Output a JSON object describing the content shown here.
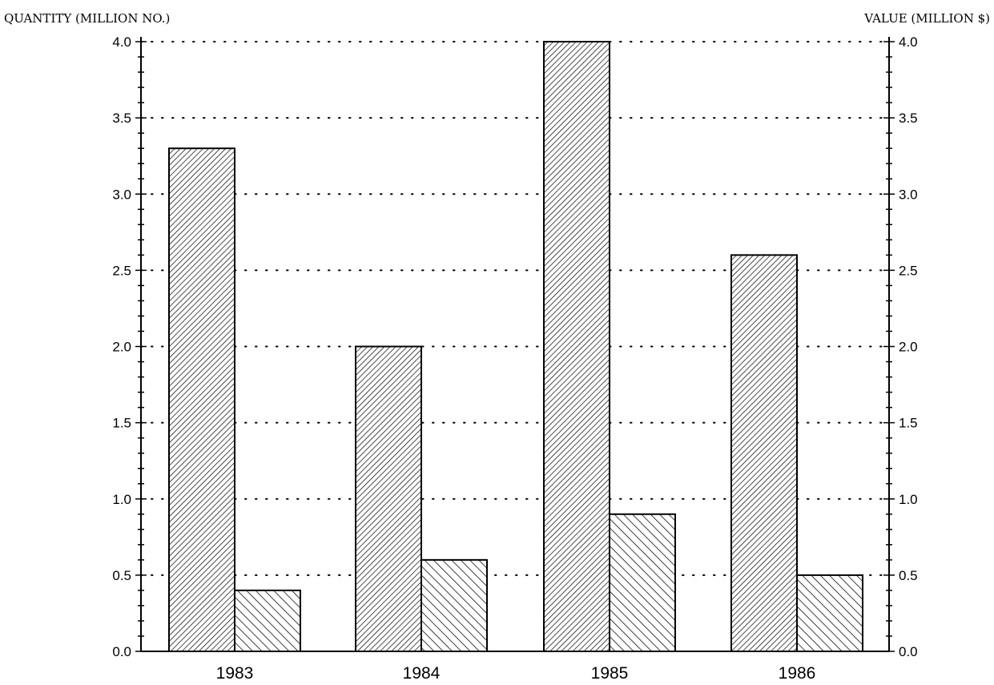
{
  "chart_data": {
    "type": "bar",
    "categories": [
      "1983",
      "1984",
      "1985",
      "1986"
    ],
    "series": [
      {
        "values": [
          3.3,
          2.0,
          4.0,
          2.6
        ],
        "axis": "left",
        "pattern": "dense-forward-hatch"
      },
      {
        "values": [
          0.4,
          0.6,
          0.9,
          0.5
        ],
        "axis": "right",
        "pattern": "backward-hatch"
      }
    ],
    "y_left": {
      "label": "QUANTITY (MILLION NO.)",
      "ylim": [
        0,
        4.0
      ],
      "ticks": [
        "0.0",
        "0.5",
        "1.0",
        "1.5",
        "2.0",
        "2.5",
        "3.0",
        "3.5",
        "4.0"
      ]
    },
    "y_right": {
      "label": "VALUE (MILLION $)",
      "ylim": [
        0,
        4.0
      ],
      "ticks": [
        "0.0",
        "0.5",
        "1.0",
        "1.5",
        "2.0",
        "2.5",
        "3.0",
        "3.5",
        "4.0"
      ]
    },
    "grid": "dotted-horizontal",
    "colors": {
      "bar_fill": "#ffffff",
      "hatch": "#000000",
      "axis": "#000000"
    }
  }
}
